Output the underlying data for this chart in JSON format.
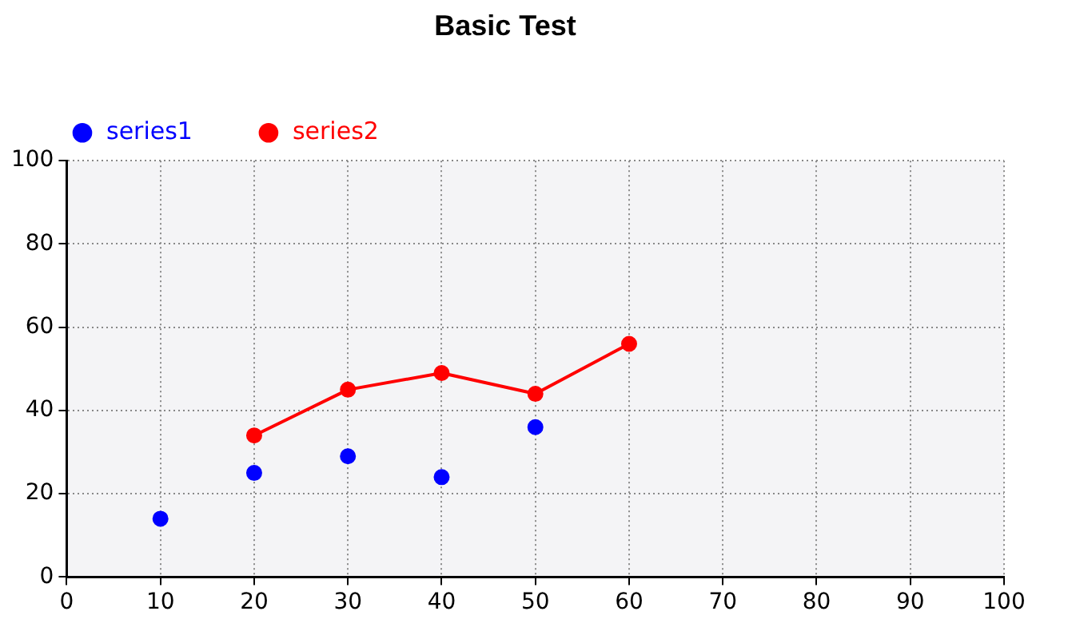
{
  "chart_data": {
    "type": "line",
    "title": "Basic Test",
    "xlim": [
      0,
      100
    ],
    "xticks": [
      0,
      10,
      20,
      30,
      40,
      50,
      60,
      70,
      80,
      90,
      100
    ],
    "ylim": [
      0,
      100
    ],
    "yticks": [
      0,
      20,
      40,
      60,
      80,
      100
    ],
    "grid": true,
    "legend": "top left",
    "marker": "circle",
    "line_style": "solid",
    "series": [
      {
        "name": "series1",
        "color": "#0000ff",
        "type": "scatter",
        "x": [
          10,
          20,
          30,
          40,
          50
        ],
        "values": [
          14,
          25,
          29,
          24,
          36
        ]
      },
      {
        "name": "series2",
        "color": "#ff0000",
        "type": "line",
        "x": [
          20,
          30,
          40,
          50,
          60
        ],
        "values": [
          34,
          45,
          49,
          44,
          56
        ]
      }
    ]
  }
}
